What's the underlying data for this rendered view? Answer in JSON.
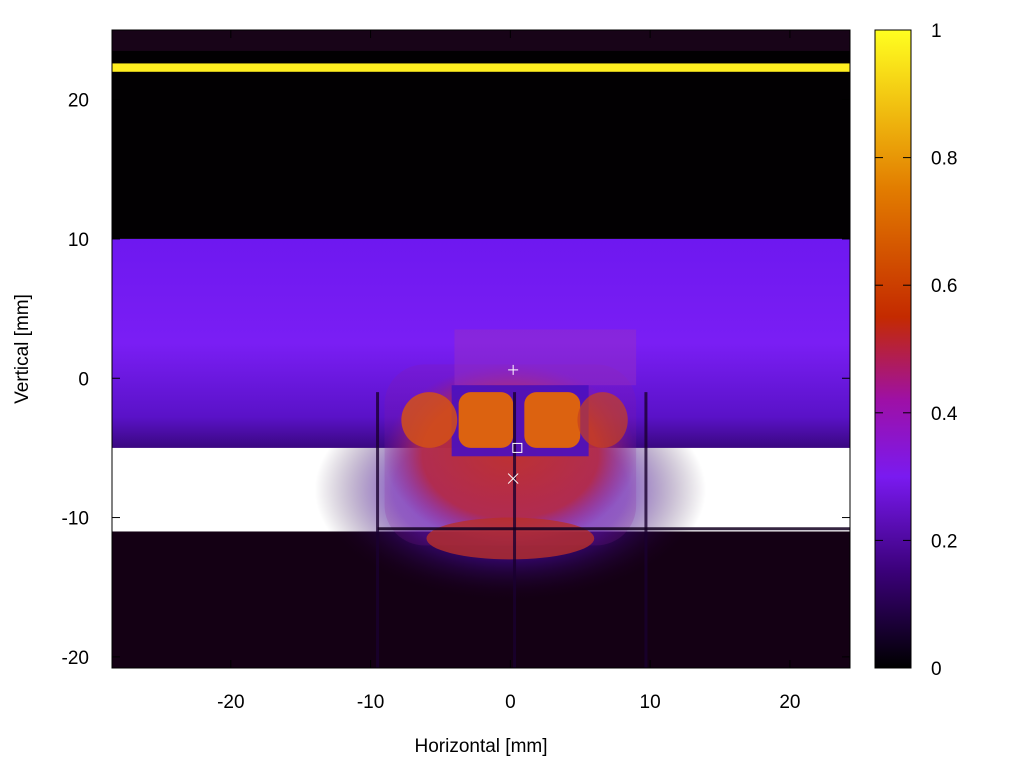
{
  "chart_data": {
    "type": "heatmap",
    "xlabel": "Horizontal [mm]",
    "ylabel": "Vertical [mm]",
    "xlim": [
      -28.5,
      24.3
    ],
    "ylim": [
      -20.8,
      25.0
    ],
    "xticks": [
      -20,
      -10,
      0,
      10,
      20
    ],
    "yticks": [
      -20,
      -10,
      0,
      10,
      20
    ],
    "colorbar": {
      "range": [
        0,
        1
      ],
      "ticks": [
        0,
        0.2,
        0.4,
        0.6,
        0.8,
        1
      ],
      "tick_labels": [
        "0",
        "0.2",
        "0.4",
        "0.6",
        "0.8",
        "1"
      ],
      "colormap": [
        "#000000",
        "#3a0078",
        "#7a1af0",
        "#9e10a6",
        "#c42a00",
        "#e27c00",
        "#ffff20"
      ]
    },
    "regions": [
      {
        "name": "upper dark band",
        "x": [
          -28.5,
          24.3
        ],
        "y": [
          10,
          25
        ],
        "value": 0.03
      },
      {
        "name": "bright stripe",
        "x": [
          -28.5,
          24.3
        ],
        "y": [
          22.0,
          22.6
        ],
        "value": 0.97
      },
      {
        "name": "horizontal violet band",
        "x": [
          -28.5,
          24.3
        ],
        "y": [
          -5,
          10
        ],
        "value": 0.28
      },
      {
        "name": "central orange window (left)",
        "x": [
          -3.7,
          0.2
        ],
        "y": [
          -5,
          -1
        ],
        "value": 0.66
      },
      {
        "name": "central orange window (right)",
        "x": [
          1.0,
          5.0
        ],
        "y": [
          -5,
          -1
        ],
        "value": 0.66
      },
      {
        "name": "central red region",
        "x": [
          -9,
          9
        ],
        "y": [
          -12,
          1
        ],
        "value": 0.5
      },
      {
        "name": "lower dim region",
        "x": [
          -28.5,
          24.3
        ],
        "y": [
          -20.8,
          -11
        ],
        "value": 0.12
      }
    ],
    "markers": [
      {
        "symbol": "+",
        "x": 0.2,
        "y": 0.6
      },
      {
        "symbol": "□",
        "x": 0.5,
        "y": -5.0
      },
      {
        "symbol": "×",
        "x": 0.2,
        "y": -7.2
      }
    ],
    "grid": false,
    "legend": "none"
  }
}
